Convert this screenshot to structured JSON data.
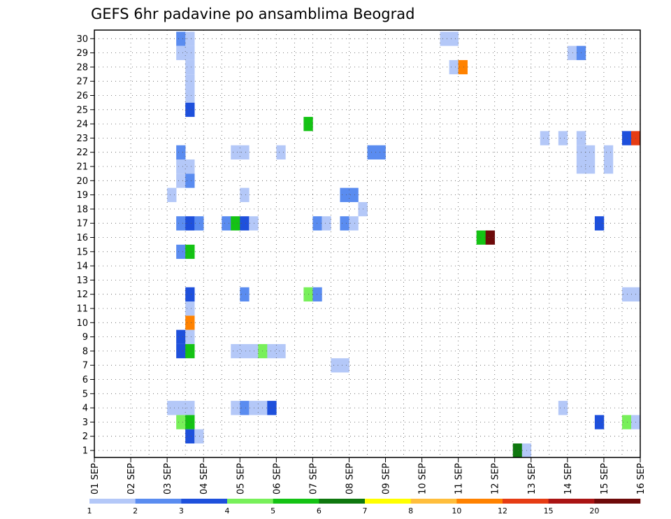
{
  "chart_data": {
    "type": "heatmap",
    "title": "GEFS 6hr padavine po ansamblima Beograd",
    "xlabel": "",
    "ylabel": "",
    "x_tick_labels": [
      "01 SEP",
      "02 SEP",
      "03 SEP",
      "04 SEP",
      "05 SEP",
      "06 SEP",
      "07 SEP",
      "08 SEP",
      "09 SEP",
      "10 SEP",
      "11 SEP",
      "12 SEP",
      "13 SEP",
      "14 SEP",
      "15 SEP",
      "16 SEP"
    ],
    "y_tick_labels": [
      "1",
      "2",
      "3",
      "4",
      "5",
      "6",
      "7",
      "8",
      "9",
      "10",
      "11",
      "12",
      "13",
      "14",
      "15",
      "16",
      "17",
      "18",
      "19",
      "20",
      "21",
      "22",
      "23",
      "24",
      "25",
      "26",
      "27",
      "28",
      "29",
      "30"
    ],
    "xlim_days": [
      1,
      16
    ],
    "ylim_members": [
      0,
      30
    ],
    "grid": true,
    "step_hours": 6,
    "color_scale": {
      "boundaries": [
        "1",
        "2",
        "3",
        "4",
        "5",
        "6",
        "7",
        "8",
        "10",
        "12",
        "15",
        "20"
      ],
      "colors": [
        "#b4c8f8",
        "#5a8cf0",
        "#1e50dc",
        "#78f05a",
        "#14c314",
        "#0f780f",
        "#ffff00",
        "#ffbe3c",
        "#ff8200",
        "#e63c14",
        "#aa1414",
        "#6e0a0a"
      ]
    },
    "cells_note_units": "day = day-of-month (interval start), member = ensemble member, color_index = index into color_scale.colors",
    "cells": [
      {
        "day": 3.25,
        "member": 30,
        "color_index": 1
      },
      {
        "day": 3.5,
        "member": 30,
        "color_index": 0
      },
      {
        "day": 3.25,
        "member": 29,
        "color_index": 0
      },
      {
        "day": 3.5,
        "member": 29,
        "color_index": 0
      },
      {
        "day": 3.5,
        "member": 28,
        "color_index": 0
      },
      {
        "day": 3.5,
        "member": 27,
        "color_index": 0
      },
      {
        "day": 3.5,
        "member": 26,
        "color_index": 0
      },
      {
        "day": 3.5,
        "member": 25,
        "color_index": 2
      },
      {
        "day": 6.75,
        "member": 24,
        "color_index": 4
      },
      {
        "day": 3.25,
        "member": 22,
        "color_index": 1
      },
      {
        "day": 4.75,
        "member": 22,
        "color_index": 0
      },
      {
        "day": 5.0,
        "member": 22,
        "color_index": 0
      },
      {
        "day": 6.0,
        "member": 22,
        "color_index": 0
      },
      {
        "day": 8.5,
        "member": 22,
        "color_index": 1
      },
      {
        "day": 8.75,
        "member": 22,
        "color_index": 1
      },
      {
        "day": 3.25,
        "member": 21,
        "color_index": 0
      },
      {
        "day": 3.5,
        "member": 21,
        "color_index": 0
      },
      {
        "day": 3.25,
        "member": 20,
        "color_index": 0
      },
      {
        "day": 3.5,
        "member": 20,
        "color_index": 1
      },
      {
        "day": 3.0,
        "member": 19,
        "color_index": 0
      },
      {
        "day": 5.0,
        "member": 19,
        "color_index": 0
      },
      {
        "day": 7.75,
        "member": 19,
        "color_index": 1
      },
      {
        "day": 8.0,
        "member": 19,
        "color_index": 1
      },
      {
        "day": 8.25,
        "member": 18,
        "color_index": 0
      },
      {
        "day": 3.25,
        "member": 17,
        "color_index": 1
      },
      {
        "day": 3.5,
        "member": 17,
        "color_index": 2
      },
      {
        "day": 3.75,
        "member": 17,
        "color_index": 1
      },
      {
        "day": 4.5,
        "member": 17,
        "color_index": 1
      },
      {
        "day": 4.75,
        "member": 17,
        "color_index": 4
      },
      {
        "day": 5.0,
        "member": 17,
        "color_index": 2
      },
      {
        "day": 5.25,
        "member": 17,
        "color_index": 0
      },
      {
        "day": 7.0,
        "member": 17,
        "color_index": 1
      },
      {
        "day": 7.25,
        "member": 17,
        "color_index": 0
      },
      {
        "day": 7.75,
        "member": 17,
        "color_index": 1
      },
      {
        "day": 8.0,
        "member": 17,
        "color_index": 0
      },
      {
        "day": 14.75,
        "member": 17,
        "color_index": 2
      },
      {
        "day": 11.5,
        "member": 16,
        "color_index": 4
      },
      {
        "day": 11.75,
        "member": 16,
        "color_index": 11
      },
      {
        "day": 3.25,
        "member": 15,
        "color_index": 1
      },
      {
        "day": 3.5,
        "member": 15,
        "color_index": 4
      },
      {
        "day": 3.5,
        "member": 12,
        "color_index": 2
      },
      {
        "day": 5.0,
        "member": 12,
        "color_index": 1
      },
      {
        "day": 6.75,
        "member": 12,
        "color_index": 3
      },
      {
        "day": 7.0,
        "member": 12,
        "color_index": 1
      },
      {
        "day": 15.5,
        "member": 12,
        "color_index": 0
      },
      {
        "day": 15.75,
        "member": 12,
        "color_index": 0
      },
      {
        "day": 3.5,
        "member": 11,
        "color_index": 0
      },
      {
        "day": 3.5,
        "member": 10,
        "color_index": 8
      },
      {
        "day": 3.25,
        "member": 9,
        "color_index": 2
      },
      {
        "day": 3.5,
        "member": 9,
        "color_index": 0
      },
      {
        "day": 3.25,
        "member": 8,
        "color_index": 2
      },
      {
        "day": 3.5,
        "member": 8,
        "color_index": 4
      },
      {
        "day": 4.75,
        "member": 8,
        "color_index": 0
      },
      {
        "day": 5.0,
        "member": 8,
        "color_index": 0
      },
      {
        "day": 5.25,
        "member": 8,
        "color_index": 0
      },
      {
        "day": 5.5,
        "member": 8,
        "color_index": 3
      },
      {
        "day": 5.75,
        "member": 8,
        "color_index": 0
      },
      {
        "day": 6.0,
        "member": 8,
        "color_index": 0
      },
      {
        "day": 7.5,
        "member": 7,
        "color_index": 0
      },
      {
        "day": 7.75,
        "member": 7,
        "color_index": 0
      },
      {
        "day": 3.0,
        "member": 4,
        "color_index": 0
      },
      {
        "day": 3.25,
        "member": 4,
        "color_index": 0
      },
      {
        "day": 3.5,
        "member": 4,
        "color_index": 0
      },
      {
        "day": 4.75,
        "member": 4,
        "color_index": 0
      },
      {
        "day": 5.0,
        "member": 4,
        "color_index": 1
      },
      {
        "day": 5.25,
        "member": 4,
        "color_index": 0
      },
      {
        "day": 5.5,
        "member": 4,
        "color_index": 0
      },
      {
        "day": 5.75,
        "member": 4,
        "color_index": 2
      },
      {
        "day": 13.75,
        "member": 4,
        "color_index": 0
      },
      {
        "day": 3.25,
        "member": 3,
        "color_index": 3
      },
      {
        "day": 3.5,
        "member": 3,
        "color_index": 4
      },
      {
        "day": 14.75,
        "member": 3,
        "color_index": 2
      },
      {
        "day": 15.5,
        "member": 3,
        "color_index": 3
      },
      {
        "day": 15.75,
        "member": 3,
        "color_index": 0
      },
      {
        "day": 3.5,
        "member": 2,
        "color_index": 2
      },
      {
        "day": 3.75,
        "member": 2,
        "color_index": 0
      },
      {
        "day": 12.5,
        "member": 1,
        "color_index": 5
      },
      {
        "day": 12.75,
        "member": 1,
        "color_index": 0
      },
      {
        "day": 10.5,
        "member": 30,
        "color_index": 0
      },
      {
        "day": 10.75,
        "member": 30,
        "color_index": 0
      },
      {
        "day": 10.75,
        "member": 28,
        "color_index": 0
      },
      {
        "day": 11.0,
        "member": 28,
        "color_index": 8
      },
      {
        "day": 14.0,
        "member": 29,
        "color_index": 0
      },
      {
        "day": 14.25,
        "member": 29,
        "color_index": 1
      },
      {
        "day": 13.25,
        "member": 23,
        "color_index": 0
      },
      {
        "day": 13.75,
        "member": 23,
        "color_index": 0
      },
      {
        "day": 14.25,
        "member": 23,
        "color_index": 0
      },
      {
        "day": 15.5,
        "member": 23,
        "color_index": 2
      },
      {
        "day": 15.75,
        "member": 23,
        "color_index": 9
      },
      {
        "day": 14.25,
        "member": 22,
        "color_index": 0
      },
      {
        "day": 14.5,
        "member": 22,
        "color_index": 0
      },
      {
        "day": 15.0,
        "member": 22,
        "color_index": 0
      },
      {
        "day": 14.25,
        "member": 21,
        "color_index": 0
      },
      {
        "day": 14.5,
        "member": 21,
        "color_index": 0
      },
      {
        "day": 15.0,
        "member": 21,
        "color_index": 0
      }
    ]
  }
}
